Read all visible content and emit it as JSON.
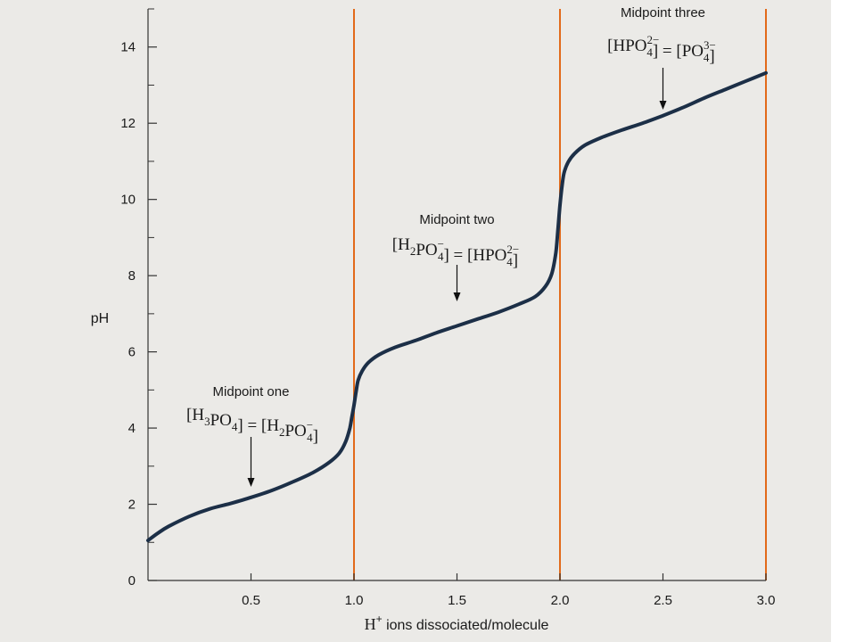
{
  "chart_data": {
    "type": "line",
    "xlabel_prefix": "H",
    "xlabel_superscript": "+",
    "xlabel_rest": " ions dissociated/molecule",
    "ylabel": "pH",
    "xlim": [
      0,
      3.0
    ],
    "ylim": [
      0,
      15
    ],
    "x_ticks": [
      {
        "value": 0.5,
        "label": "0.5"
      },
      {
        "value": 1.0,
        "label": "1.0"
      },
      {
        "value": 1.5,
        "label": "1.5"
      },
      {
        "value": 2.0,
        "label": "2.0"
      },
      {
        "value": 2.5,
        "label": "2.5"
      },
      {
        "value": 3.0,
        "label": "3.0"
      }
    ],
    "y_ticks": [
      {
        "value": 0,
        "label": "0"
      },
      {
        "value": 2,
        "label": "2"
      },
      {
        "value": 4,
        "label": "4"
      },
      {
        "value": 6,
        "label": "6"
      },
      {
        "value": 8,
        "label": "8"
      },
      {
        "value": 10,
        "label": "10"
      },
      {
        "value": 12,
        "label": "12"
      },
      {
        "value": 14,
        "label": "14"
      }
    ],
    "y_minor_ticks": [
      1,
      3,
      5,
      7,
      9,
      11,
      13,
      15
    ],
    "reference_lines_x": [
      1.0,
      2.0,
      3.0
    ],
    "series": [
      {
        "color": "#1c2f47",
        "x": [
          0.0,
          0.05,
          0.1,
          0.2,
          0.3,
          0.4,
          0.5,
          0.6,
          0.7,
          0.8,
          0.88,
          0.93,
          0.96,
          0.98,
          0.99,
          1.0,
          1.01,
          1.02,
          1.04,
          1.07,
          1.12,
          1.2,
          1.3,
          1.4,
          1.5,
          1.6,
          1.7,
          1.8,
          1.88,
          1.93,
          1.96,
          1.98,
          1.99,
          2.0,
          2.01,
          2.02,
          2.04,
          2.07,
          2.12,
          2.2,
          2.3,
          2.4,
          2.5,
          2.6,
          2.7,
          2.8,
          2.9,
          3.0
        ],
        "y": [
          1.05,
          1.25,
          1.42,
          1.68,
          1.88,
          2.02,
          2.18,
          2.36,
          2.58,
          2.83,
          3.1,
          3.35,
          3.65,
          4.0,
          4.3,
          4.6,
          4.95,
          5.25,
          5.5,
          5.72,
          5.92,
          6.12,
          6.3,
          6.5,
          6.68,
          6.86,
          7.04,
          7.25,
          7.45,
          7.72,
          8.05,
          8.6,
          9.2,
          9.85,
          10.35,
          10.7,
          10.98,
          11.2,
          11.42,
          11.62,
          11.82,
          12.0,
          12.2,
          12.42,
          12.66,
          12.88,
          13.1,
          13.32
        ]
      }
    ],
    "annotations": [
      {
        "title": "Midpoint one",
        "x": 0.5,
        "y": 2.15,
        "equation": [
          {
            "t": "[H"
          },
          {
            "t": "3",
            "sub": true
          },
          {
            "t": "PO"
          },
          {
            "t": "4",
            "sub": true
          },
          {
            "t": "] = [H"
          },
          {
            "t": "2",
            "sub": true
          },
          {
            "t": "PO"
          },
          {
            "t": "4",
            "sub": true,
            "sup": "−"
          },
          {
            "t": "]"
          }
        ]
      },
      {
        "title": "Midpoint two",
        "x": 1.5,
        "y": 7.4,
        "equation": [
          {
            "t": "[H"
          },
          {
            "t": "2",
            "sub": true
          },
          {
            "t": "PO"
          },
          {
            "t": "4",
            "sub": true,
            "sup": "−"
          },
          {
            "t": "] = [HPO"
          },
          {
            "t": "4",
            "sub": true,
            "sup": "2−"
          },
          {
            "t": "]"
          }
        ]
      },
      {
        "title": "Midpoint three",
        "x": 2.5,
        "y": 12.2,
        "equation": [
          {
            "t": "[HPO"
          },
          {
            "t": "4",
            "sub": true,
            "sup": "2−"
          },
          {
            "t": "] = [PO"
          },
          {
            "t": "4",
            "sub": true,
            "sup": "3−"
          },
          {
            "t": "]"
          }
        ]
      }
    ],
    "colors": {
      "background": "#ebeae7",
      "curve": "#1c2f47",
      "reference_line": "#e26a1a",
      "axis": "#333333"
    }
  }
}
